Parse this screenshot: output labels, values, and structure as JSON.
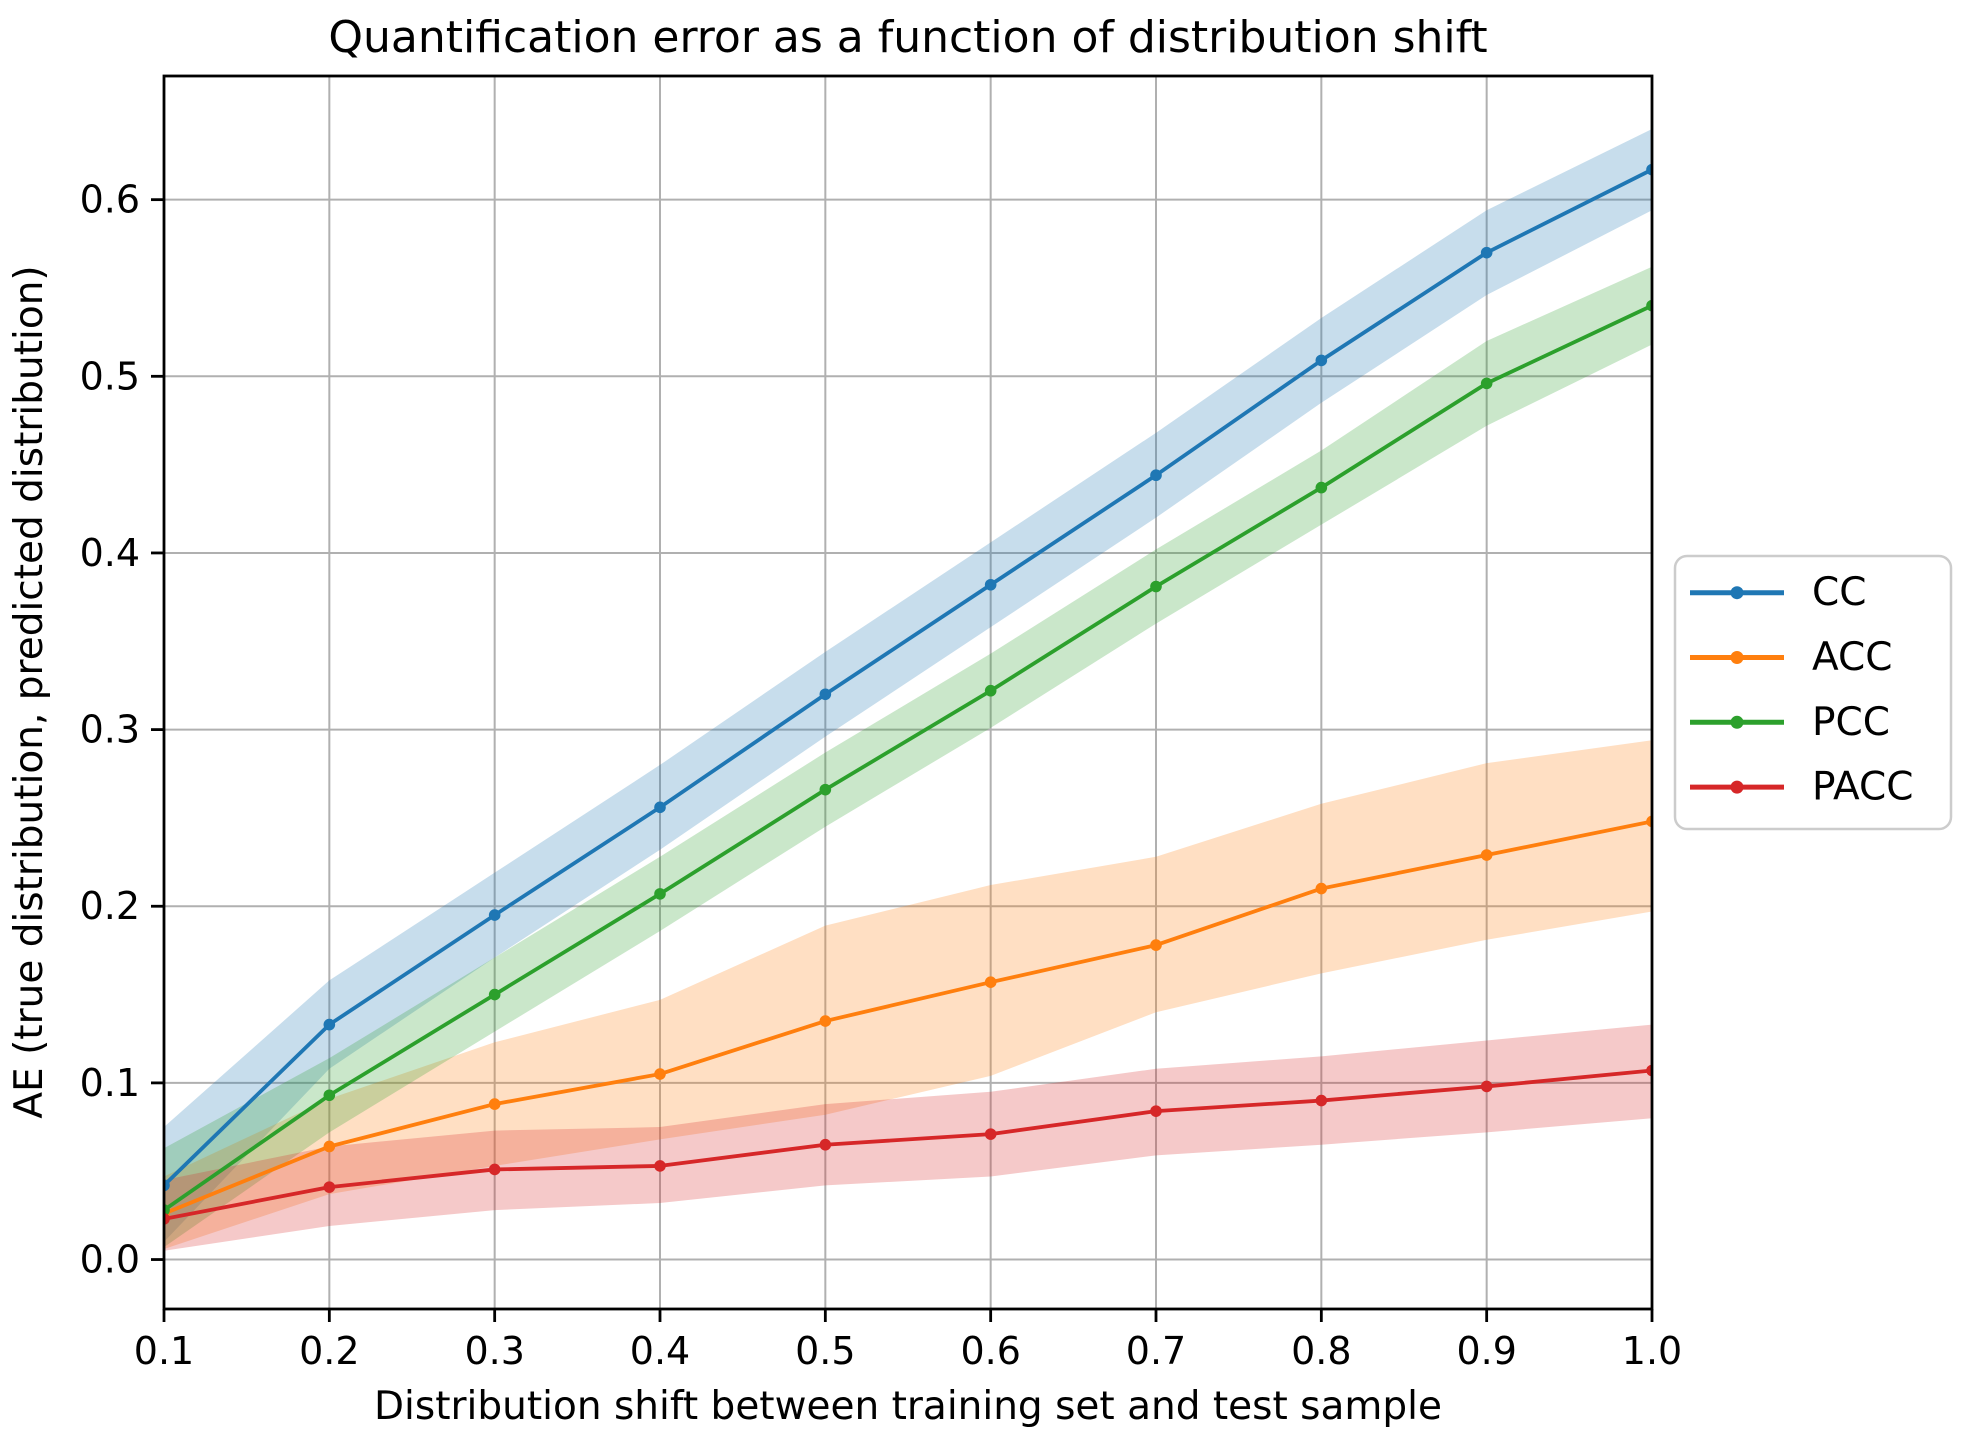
{
  "chart_data": {
    "type": "line",
    "title": "Quantification error as a function of distribution shift",
    "xlabel": "Distribution shift between training set and test sample",
    "ylabel": "AE (true distribution, predicted distribution)",
    "x": [
      0.1,
      0.2,
      0.3,
      0.4,
      0.5,
      0.6,
      0.7,
      0.8,
      0.9,
      1.0
    ],
    "x_tick_labels": [
      "0.1",
      "0.2",
      "0.3",
      "0.4",
      "0.5",
      "0.6",
      "0.7",
      "0.8",
      "0.9",
      "1.0"
    ],
    "y_ticks": [
      0.0,
      0.1,
      0.2,
      0.3,
      0.4,
      0.5,
      0.6
    ],
    "y_tick_labels": [
      "0.0",
      "0.1",
      "0.2",
      "0.3",
      "0.4",
      "0.5",
      "0.6"
    ],
    "xlim": [
      0.1,
      1.0
    ],
    "ylim": [
      -0.028,
      0.67
    ],
    "grid": true,
    "band_opacity": 0.25,
    "legend": {
      "position": "center-right-outside",
      "entries": [
        "CC",
        "ACC",
        "PCC",
        "PACC"
      ]
    },
    "series": [
      {
        "name": "CC",
        "color": "#1f77b4",
        "values": [
          0.042,
          0.133,
          0.195,
          0.256,
          0.32,
          0.382,
          0.444,
          0.509,
          0.57,
          0.617
        ],
        "band_lower": [
          0.01,
          0.108,
          0.171,
          0.232,
          0.296,
          0.358,
          0.42,
          0.485,
          0.546,
          0.594
        ],
        "band_upper": [
          0.075,
          0.158,
          0.219,
          0.28,
          0.344,
          0.406,
          0.468,
          0.533,
          0.594,
          0.64
        ]
      },
      {
        "name": "ACC",
        "color": "#ff7f0e",
        "values": [
          0.026,
          0.064,
          0.088,
          0.105,
          0.135,
          0.157,
          0.178,
          0.21,
          0.229,
          0.248
        ],
        "band_lower": [
          0.006,
          0.037,
          0.053,
          0.068,
          0.082,
          0.104,
          0.14,
          0.162,
          0.181,
          0.197
        ],
        "band_upper": [
          0.047,
          0.091,
          0.123,
          0.147,
          0.189,
          0.212,
          0.228,
          0.258,
          0.281,
          0.294
        ]
      },
      {
        "name": "PCC",
        "color": "#2ca02c",
        "values": [
          0.028,
          0.093,
          0.15,
          0.207,
          0.266,
          0.322,
          0.381,
          0.437,
          0.496,
          0.54
        ],
        "band_lower": [
          0.007,
          0.072,
          0.129,
          0.186,
          0.245,
          0.301,
          0.36,
          0.416,
          0.472,
          0.518
        ],
        "band_upper": [
          0.063,
          0.114,
          0.171,
          0.228,
          0.287,
          0.343,
          0.402,
          0.458,
          0.52,
          0.562
        ]
      },
      {
        "name": "PACC",
        "color": "#d62728",
        "values": [
          0.023,
          0.041,
          0.051,
          0.053,
          0.065,
          0.071,
          0.084,
          0.09,
          0.098,
          0.107
        ],
        "band_lower": [
          0.005,
          0.019,
          0.028,
          0.032,
          0.042,
          0.047,
          0.059,
          0.065,
          0.072,
          0.08
        ],
        "band_upper": [
          0.045,
          0.064,
          0.073,
          0.075,
          0.088,
          0.095,
          0.108,
          0.115,
          0.124,
          0.133
        ]
      }
    ]
  },
  "styles": {
    "background": "#ffffff",
    "grid_color": "#b0b0b0",
    "spine_color": "#000000",
    "tick_color": "#000000",
    "text_color": "#000000",
    "legend_border_color": "#cccccc",
    "legend_background": "#ffffff"
  }
}
